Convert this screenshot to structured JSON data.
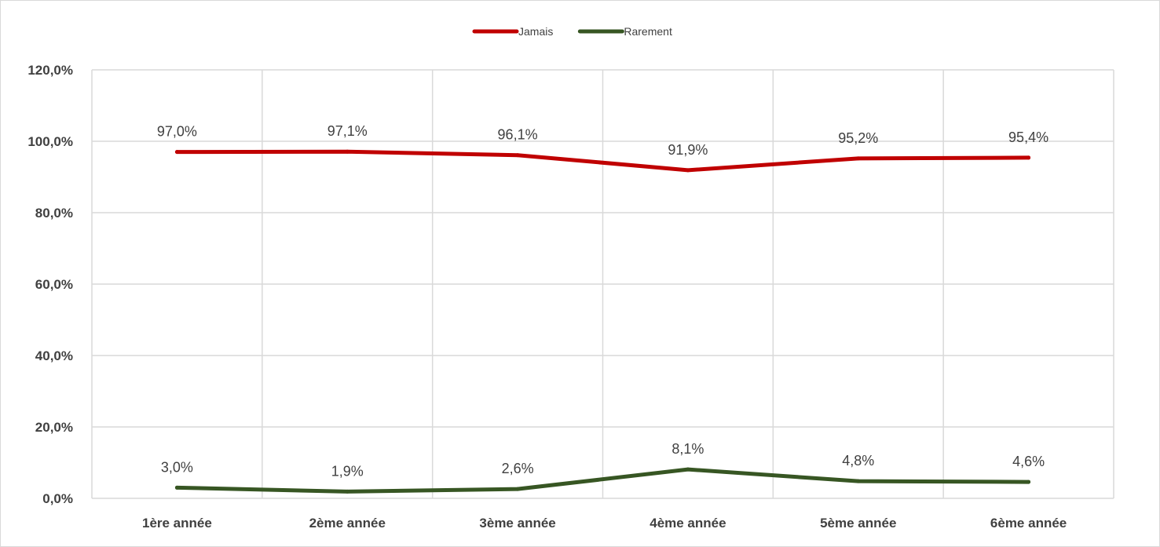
{
  "chart_data": {
    "type": "line",
    "title": "",
    "xlabel": "",
    "ylabel": "",
    "categories": [
      "1ère année",
      "2ème année",
      "3ème année",
      "4ème année",
      "5ème année",
      "6ème année"
    ],
    "series": [
      {
        "name": "Jamais",
        "color": "#c00000",
        "values": [
          97.0,
          97.1,
          96.1,
          91.9,
          95.2,
          95.4
        ],
        "labels": [
          "97,0%",
          "97,1%",
          "96,1%",
          "91,9%",
          "95,2%",
          "95,4%"
        ]
      },
      {
        "name": "Rarement",
        "color": "#375623",
        "values": [
          3.0,
          1.9,
          2.6,
          8.1,
          4.8,
          4.6
        ],
        "labels": [
          "3,0%",
          "1,9%",
          "2,6%",
          "8,1%",
          "4,8%",
          "4,6%"
        ]
      }
    ],
    "ylim": [
      0,
      120
    ],
    "yticks": [
      "0,0%",
      "20,0%",
      "40,0%",
      "60,0%",
      "80,0%",
      "100,0%",
      "120,0%"
    ],
    "grid": true,
    "legend_position": "top-center"
  }
}
